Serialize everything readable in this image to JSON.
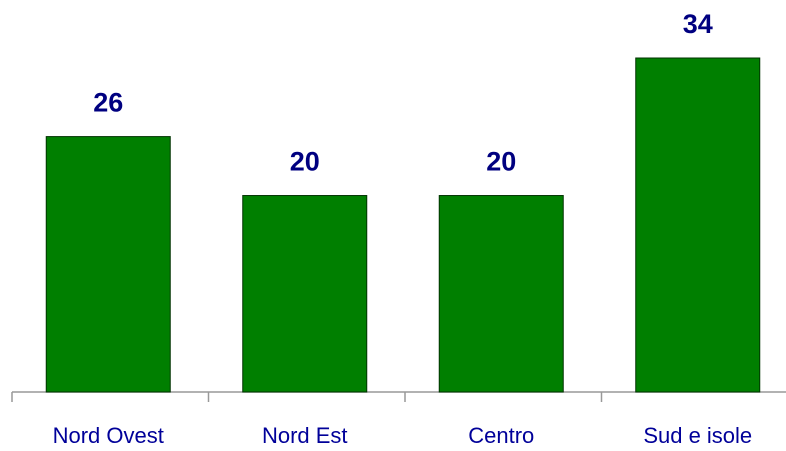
{
  "chart_data": {
    "type": "bar",
    "categories": [
      "Nord Ovest",
      "Nord Est",
      "Centro",
      "Sud e isole"
    ],
    "values": [
      26,
      20,
      20,
      34
    ],
    "color": "#007f00",
    "ylim": [
      0,
      34
    ]
  }
}
